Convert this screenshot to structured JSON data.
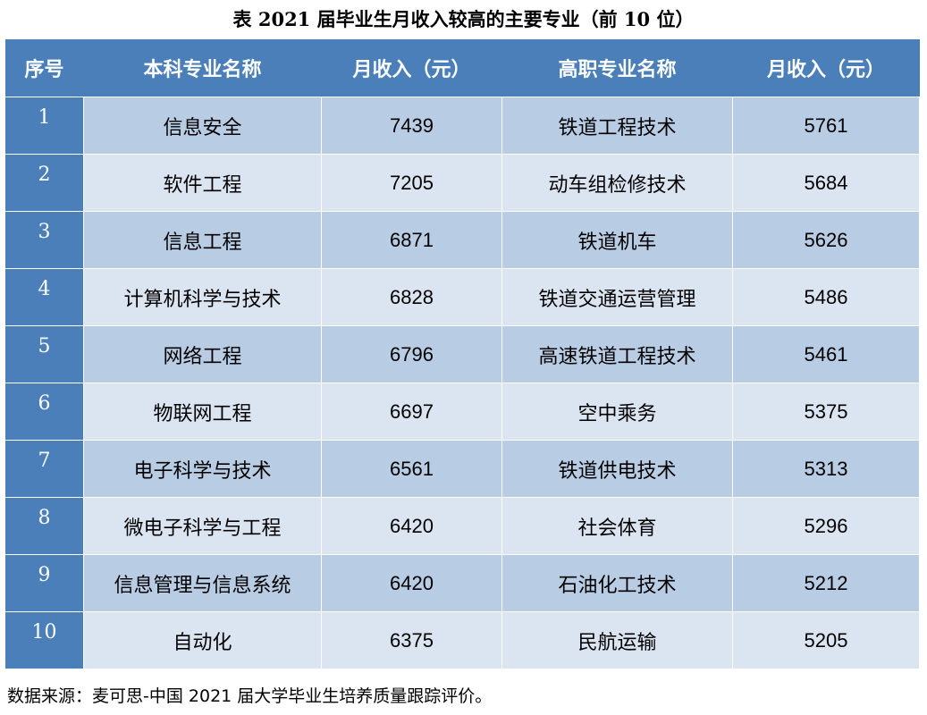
{
  "title": "表  2021 届毕业生月收入较高的主要专业（前 10 位）",
  "headers": [
    "序号",
    "本科专业名称",
    "月收入（元）",
    "高职专业名称",
    "月收入（元）"
  ],
  "rows": [
    {
      "idx": "1",
      "bachelor_major": "信息安全",
      "bachelor_income": "7439",
      "vocational_major": "铁道工程技术",
      "vocational_income": "5761"
    },
    {
      "idx": "2",
      "bachelor_major": "软件工程",
      "bachelor_income": "7205",
      "vocational_major": "动车组检修技术",
      "vocational_income": "5684"
    },
    {
      "idx": "3",
      "bachelor_major": "信息工程",
      "bachelor_income": "6871",
      "vocational_major": "铁道机车",
      "vocational_income": "5626"
    },
    {
      "idx": "4",
      "bachelor_major": "计算机科学与技术",
      "bachelor_income": "6828",
      "vocational_major": "铁道交通运营管理",
      "vocational_income": "5486"
    },
    {
      "idx": "5",
      "bachelor_major": "网络工程",
      "bachelor_income": "6796",
      "vocational_major": "高速铁道工程技术",
      "vocational_income": "5461"
    },
    {
      "idx": "6",
      "bachelor_major": "物联网工程",
      "bachelor_income": "6697",
      "vocational_major": "空中乘务",
      "vocational_income": "5375"
    },
    {
      "idx": "7",
      "bachelor_major": "电子科学与技术",
      "bachelor_income": "6561",
      "vocational_major": "铁道供电技术",
      "vocational_income": "5313"
    },
    {
      "idx": "8",
      "bachelor_major": "微电子科学与工程",
      "bachelor_income": "6420",
      "vocational_major": "社会体育",
      "vocational_income": "5296"
    },
    {
      "idx": "9",
      "bachelor_major": "信息管理与信息系统",
      "bachelor_income": "6420",
      "vocational_major": "石油化工技术",
      "vocational_income": "5212"
    },
    {
      "idx": "10",
      "bachelor_major": "自动化",
      "bachelor_income": "6375",
      "vocational_major": "民航运输",
      "vocational_income": "5205"
    }
  ],
  "footer": "数据来源：麦可思-中国 2021 届大学毕业生培养质量跟踪评价。",
  "colors": {
    "header_bg": "#4a7fba",
    "row_dark": "#b8cce4",
    "row_light": "#dbe5f1"
  }
}
